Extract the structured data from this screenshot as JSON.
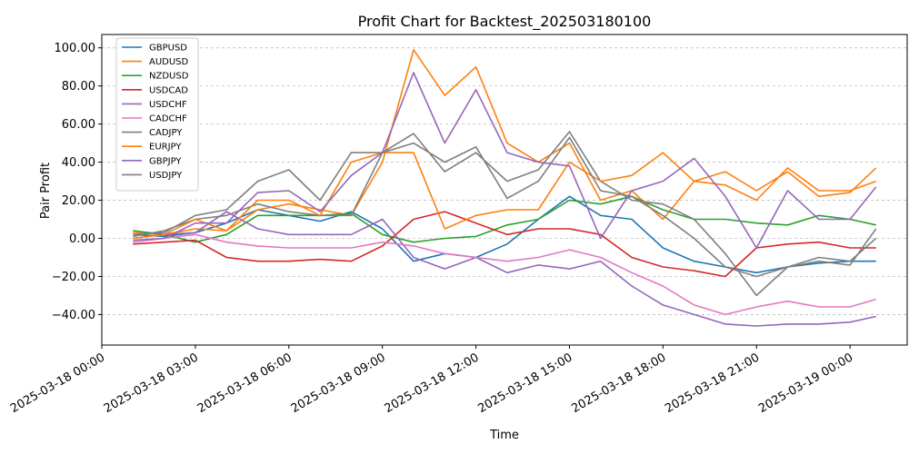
{
  "chart_data": {
    "type": "line",
    "title": "Profit Chart for Backtest_202503180100",
    "xlabel": "Time",
    "ylabel": "Pair Profit",
    "x_axis": {
      "type": "time",
      "range": [
        "2025-03-18 00:00",
        "2025-03-19 01:50"
      ],
      "ticks": [
        "2025-03-18 00:00",
        "2025-03-18 03:00",
        "2025-03-18 06:00",
        "2025-03-18 09:00",
        "2025-03-18 12:00",
        "2025-03-18 15:00",
        "2025-03-18 18:00",
        "2025-03-18 21:00",
        "2025-03-19 00:00"
      ],
      "tick_labels": [
        "2025-03-18 00:00",
        "2025-03-18 03:00",
        "2025-03-18 06:00",
        "2025-03-18 09:00",
        "2025-03-18 12:00",
        "2025-03-18 15:00",
        "2025-03-18 18:00",
        "2025-03-18 21:00",
        "2025-03-19 00:00"
      ]
    },
    "y_axis": {
      "range": [
        -56,
        107
      ],
      "ticks": [
        -40,
        -20,
        0,
        20,
        40,
        60,
        80,
        100
      ],
      "tick_labels": [
        "−40.00",
        "−20.00",
        "0.00",
        "20.00",
        "40.00",
        "60.00",
        "80.00",
        "100.00"
      ]
    },
    "grid": "horizontal dashed",
    "legend_position": "top-left",
    "x": [
      "2025-03-18 01:00",
      "2025-03-18 02:00",
      "2025-03-18 03:00",
      "2025-03-18 04:00",
      "2025-03-18 05:00",
      "2025-03-18 06:00",
      "2025-03-18 07:00",
      "2025-03-18 08:00",
      "2025-03-18 09:00",
      "2025-03-18 10:00",
      "2025-03-18 11:00",
      "2025-03-18 12:00",
      "2025-03-18 13:00",
      "2025-03-18 14:00",
      "2025-03-18 15:00",
      "2025-03-18 16:00",
      "2025-03-18 17:00",
      "2025-03-18 18:00",
      "2025-03-18 19:00",
      "2025-03-18 20:00",
      "2025-03-18 21:00",
      "2025-03-18 22:00",
      "2025-03-18 23:00",
      "2025-03-19 00:00",
      "2025-03-19 00:50"
    ],
    "series": [
      {
        "name": "GBPUSD",
        "color": "#1f77b4",
        "values": [
          2,
          1,
          3,
          8,
          15,
          12,
          9,
          14,
          5,
          -12,
          -8,
          -10,
          -3,
          10,
          22,
          12,
          10,
          -5,
          -12,
          -15,
          -18,
          -15,
          -13,
          -12,
          -12
        ]
      },
      {
        "name": "AUDUSD",
        "color": "#ff7f0e",
        "values": [
          3,
          2,
          5,
          4,
          15,
          18,
          15,
          12,
          40,
          99,
          75,
          90,
          50,
          40,
          50,
          20,
          25,
          10,
          30,
          35,
          25,
          35,
          22,
          24,
          37
        ]
      },
      {
        "name": "NZDUSD",
        "color": "#2ca02c",
        "values": [
          4,
          2,
          -2,
          2,
          12,
          12,
          12,
          13,
          2,
          -2,
          0,
          1,
          7,
          10,
          20,
          18,
          22,
          15,
          10,
          10,
          8,
          7,
          12,
          10,
          7
        ]
      },
      {
        "name": "USDCAD",
        "color": "#d62728",
        "values": [
          -3,
          -2,
          -1,
          -10,
          -12,
          -12,
          -11,
          -12,
          -4,
          10,
          14,
          8,
          2,
          5,
          5,
          2,
          -10,
          -15,
          -17,
          -20,
          -5,
          -3,
          -2,
          -5,
          -5
        ]
      },
      {
        "name": "USDCHF",
        "color": "#9467bd",
        "values": [
          0,
          2,
          3,
          14,
          5,
          2,
          2,
          2,
          10,
          -10,
          -16,
          -10,
          -18,
          -14,
          -16,
          -12,
          -25,
          -35,
          -40,
          -45,
          -46,
          -45,
          -45,
          -44,
          -41
        ]
      },
      {
        "name": "CADCHF",
        "color": "#e377c2",
        "values": [
          -2,
          0,
          2,
          -2,
          -4,
          -5,
          -5,
          -5,
          -2,
          -4,
          -8,
          -10,
          -12,
          -10,
          -6,
          -10,
          -18,
          -25,
          -35,
          -40,
          -36,
          -33,
          -36,
          -36,
          -32
        ]
      },
      {
        "name": "CADJPY",
        "color": "#7f7f7f",
        "values": [
          1,
          4,
          10,
          12,
          18,
          14,
          12,
          12,
          45,
          55,
          35,
          45,
          30,
          36,
          56,
          30,
          20,
          18,
          10,
          -8,
          -30,
          -15,
          -10,
          -12,
          0
        ]
      },
      {
        "name": "EURJPY",
        "color": "#ff7f0e",
        "values": [
          0,
          2,
          10,
          4,
          20,
          20,
          12,
          40,
          45,
          45,
          5,
          12,
          15,
          15,
          40,
          30,
          33,
          45,
          30,
          28,
          20,
          37,
          25,
          25,
          30
        ]
      },
      {
        "name": "GBPJPY",
        "color": "#9467bd",
        "values": [
          -1,
          0,
          8,
          8,
          24,
          25,
          14,
          33,
          45,
          87,
          50,
          78,
          45,
          40,
          38,
          0,
          25,
          30,
          42,
          22,
          -5,
          25,
          10,
          10,
          27
        ]
      },
      {
        "name": "USDJPY",
        "color": "#7f7f7f",
        "values": [
          2,
          3,
          12,
          15,
          30,
          36,
          20,
          45,
          45,
          50,
          40,
          48,
          21,
          30,
          53,
          25,
          22,
          12,
          0,
          -15,
          -20,
          -15,
          -12,
          -14,
          5
        ]
      }
    ]
  }
}
